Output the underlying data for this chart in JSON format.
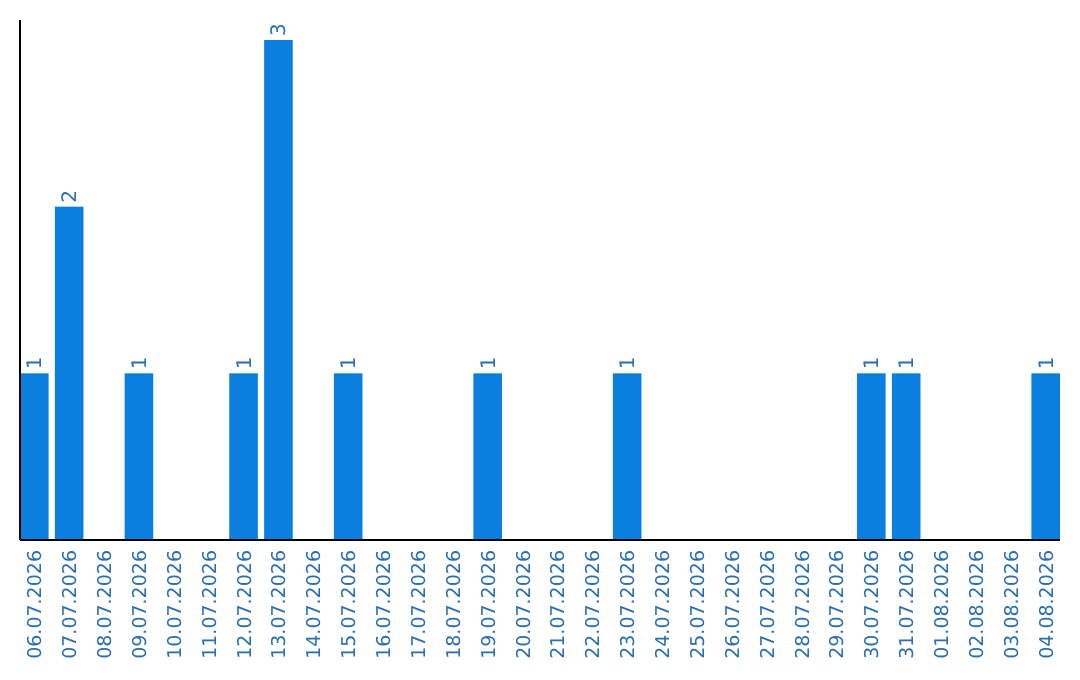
{
  "chart_data": {
    "type": "bar",
    "categories": [
      "06.07.2026",
      "07.07.2026",
      "08.07.2026",
      "09.07.2026",
      "10.07.2026",
      "11.07.2026",
      "12.07.2026",
      "13.07.2026",
      "14.07.2026",
      "15.07.2026",
      "16.07.2026",
      "17.07.2026",
      "18.07.2026",
      "19.07.2026",
      "20.07.2026",
      "21.07.2026",
      "22.07.2026",
      "23.07.2026",
      "24.07.2026",
      "25.07.2026",
      "26.07.2026",
      "27.07.2026",
      "28.07.2026",
      "29.07.2026",
      "30.07.2026",
      "31.07.2026",
      "01.08.2026",
      "02.08.2026",
      "03.08.2026",
      "04.08.2026"
    ],
    "values": [
      1,
      2,
      0,
      1,
      0,
      0,
      1,
      3,
      0,
      1,
      0,
      0,
      0,
      1,
      0,
      0,
      0,
      1,
      0,
      0,
      0,
      0,
      0,
      0,
      1,
      1,
      0,
      0,
      0,
      1
    ],
    "value_labels": [
      "1",
      "2",
      null,
      "1",
      null,
      null,
      "1",
      "3",
      null,
      "1",
      null,
      null,
      null,
      "1",
      null,
      null,
      null,
      "1",
      null,
      null,
      null,
      null,
      null,
      null,
      "1",
      "1",
      null,
      null,
      null,
      "1"
    ],
    "color": "#0a7fe0",
    "ylim": [
      0,
      3
    ]
  }
}
